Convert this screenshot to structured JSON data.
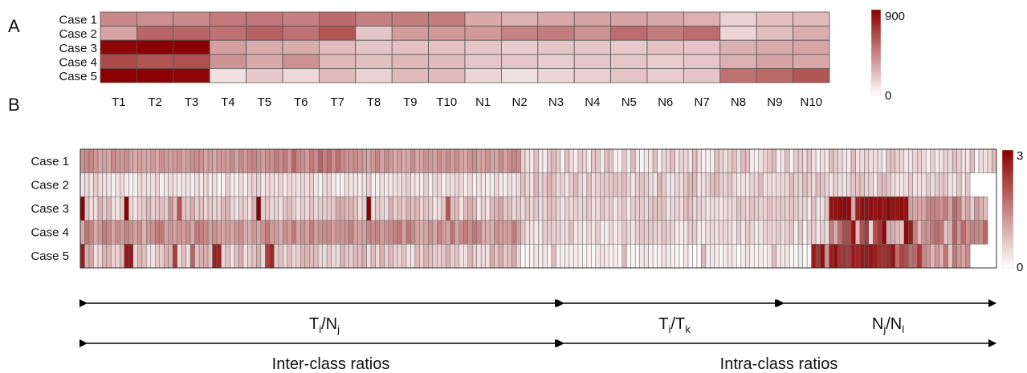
{
  "panel_labels": {
    "a": "A",
    "b": "B"
  },
  "colors": {
    "low": "#ffffff",
    "high": "#8b0000",
    "grid": "#555555",
    "arrow": "#000000"
  },
  "chart_data": [
    {
      "type": "heatmap",
      "rows": [
        "Case 1",
        "Case 2",
        "Case 3",
        "Case 4",
        "Case 5"
      ],
      "columns": [
        "T1",
        "T2",
        "T3",
        "T4",
        "T5",
        "T6",
        "T7",
        "T8",
        "T9",
        "T10",
        "N1",
        "N2",
        "N3",
        "N4",
        "N5",
        "N6",
        "N7",
        "N8",
        "N9",
        "N10"
      ],
      "values": [
        [
          420,
          400,
          410,
          470,
          480,
          450,
          520,
          450,
          460,
          460,
          300,
          280,
          300,
          320,
          320,
          300,
          280,
          160,
          220,
          240
        ],
        [
          320,
          540,
          540,
          500,
          560,
          500,
          600,
          200,
          350,
          360,
          360,
          440,
          460,
          390,
          520,
          460,
          520,
          150,
          230,
          290
        ],
        [
          880,
          900,
          900,
          340,
          300,
          290,
          240,
          200,
          220,
          220,
          200,
          180,
          200,
          200,
          190,
          220,
          210,
          280,
          300,
          320
        ],
        [
          640,
          600,
          620,
          380,
          300,
          390,
          250,
          220,
          250,
          240,
          200,
          200,
          180,
          200,
          200,
          180,
          200,
          280,
          320,
          310
        ],
        [
          900,
          900,
          880,
          110,
          190,
          140,
          240,
          160,
          240,
          240,
          150,
          110,
          150,
          170,
          210,
          180,
          210,
          500,
          530,
          600
        ]
      ],
      "scale": {
        "min": 0,
        "max": 900,
        "min_label": "0",
        "max_label": "900"
      }
    },
    {
      "type": "heatmap",
      "rows": [
        "Case 1",
        "Case 2",
        "Case 3",
        "Case 4",
        "Case 5"
      ],
      "scale": {
        "min": 0,
        "max": 3,
        "min_label": "0",
        "max_label": "3"
      },
      "segments": [
        {
          "label_base": "T",
          "label_sub": "i",
          "label_mid": "/N",
          "label_sub2": "j"
        },
        {
          "label_base": "T",
          "label_sub": "i",
          "label_mid": "/T",
          "label_sub2": "k"
        },
        {
          "label_base": "N",
          "label_sub": "j",
          "label_mid": "/N",
          "label_sub2": "l"
        }
      ],
      "groups": [
        "Inter-class ratios",
        "Intra-class ratios"
      ],
      "values": [
        [
          1.31,
          1.4,
          1.44,
          1.21,
          1.05,
          1.1,
          1.02,
          1.39,
          1.24,
          1.19,
          1.32,
          1.11,
          1.0,
          1.15,
          1.05,
          1.02,
          1.2,
          1.0,
          1.34,
          1.19,
          1.15,
          1.2,
          1.29,
          1.05,
          1.18,
          1.32,
          1.35,
          1.26,
          1.04,
          1.16,
          1.03,
          1.2,
          1.2,
          1.19,
          1.37,
          1.07,
          1.36,
          1.2,
          1.39,
          1.43,
          1.31,
          1.14,
          1.32,
          1.31,
          1.54,
          1.36,
          1.57,
          1.22,
          1.81,
          1.42,
          1.36,
          1.2,
          1.58,
          1.37,
          1.82,
          1.49,
          1.72,
          1.31,
          1.71,
          1.42,
          1.28,
          1.26,
          1.4,
          1.25,
          1.16,
          1.06,
          1.22,
          1.43,
          1.05,
          1.35,
          1.21,
          0.99,
          1.14,
          0.96,
          1.06,
          1.37,
          1.03,
          1.07,
          1.25,
          1.19,
          1.1,
          1.33,
          1.13,
          1.35,
          1.15,
          1.35,
          1.13,
          1.02,
          1.27,
          1.31,
          1.09,
          1.07,
          1.27,
          1.05,
          1.04,
          1.36,
          1.05,
          1.3,
          1.43,
          1.37,
          0.58,
          0.38,
          0.27,
          0.74,
          0.29,
          0.19,
          0.68,
          0.79,
          0.62,
          0.17,
          0.78,
          0.44,
          0.17,
          0.66,
          0.52,
          0.24,
          0.7,
          0.68,
          0.24,
          0.82,
          0.7,
          0.2,
          0.14,
          0.68,
          0.27,
          0.83,
          0.27,
          0.12,
          0.28,
          0.33,
          0.75,
          0.17,
          0.48,
          0.56,
          0.76,
          0.3,
          0.51,
          0.46,
          0.35,
          0.79,
          0.44,
          0.16,
          0.2,
          0.22,
          0.79,
          0.55,
          0.39,
          0.57,
          0.78,
          0.42,
          0.82,
          0.74,
          0.24,
          0.15,
          0.35,
          0.52,
          0.71,
          0.8,
          0.2,
          0.34,
          0.77,
          0.12,
          0.61,
          0.61,
          0.4,
          0.73,
          0.35,
          0.21,
          0.37,
          0.26,
          0.75,
          0.63,
          0.47,
          0.33,
          0.25,
          0.82,
          0.32,
          0.4,
          0.53,
          0.41,
          0.39,
          0.46,
          0.2,
          0.73,
          0.74,
          0.58,
          0.52,
          0.27,
          0.36,
          0.49,
          0.6,
          0.47,
          0.16,
          0.58,
          0.24,
          0.36,
          0.54,
          0.44,
          0.78,
          0.56,
          0.4,
          0.31,
          0.78,
          0.12,
          0.4,
          0.33,
          0.47,
          0.81
        ],
        [
          0.34,
          0.45,
          0.36,
          0.6,
          0.43,
          0.4,
          0.35,
          0.15,
          0.34,
          0.46,
          0.23,
          0.16,
          0.2,
          0.5,
          0.41,
          0.36,
          0.38,
          0.52,
          0.2,
          0.32,
          0.44,
          0.34,
          0.24,
          0.29,
          0.35,
          0.18,
          0.41,
          0.28,
          0.48,
          0.29,
          0.36,
          0.17,
          0.2,
          0.59,
          0.25,
          0.2,
          0.4,
          0.22,
          0.51,
          0.53,
          0.57,
          0.3,
          0.42,
          0.44,
          0.37,
          0.57,
          0.23,
          0.49,
          0.42,
          0.34,
          0.52,
          0.41,
          0.58,
          0.3,
          0.15,
          0.48,
          0.51,
          0.27,
          0.15,
          0.19,
          0.39,
          0.29,
          0.35,
          0.25,
          0.4,
          0.56,
          0.18,
          0.21,
          0.39,
          0.26,
          0.3,
          0.35,
          0.39,
          0.43,
          0.59,
          0.33,
          0.31,
          0.27,
          0.56,
          0.24,
          0.48,
          0.5,
          0.22,
          0.44,
          0.42,
          0.52,
          0.48,
          0.23,
          0.48,
          0.2,
          0.37,
          0.27,
          0.22,
          0.25,
          0.52,
          0.26,
          0.19,
          0.38,
          0.24,
          0.45,
          0.76,
          0.47,
          0.33,
          0.87,
          0.54,
          0.62,
          0.88,
          0.74,
          0.44,
          0.54,
          0.3,
          0.64,
          0.83,
          0.52,
          0.31,
          0.79,
          0.4,
          0.57,
          0.64,
          0.65,
          0.62,
          0.75,
          0.6,
          0.79,
          0.51,
          0.3,
          0.59,
          0.71,
          0.62,
          0.43,
          0.3,
          0.88,
          0.61,
          0.3,
          0.32,
          0.49,
          0.41,
          0.67,
          0.87,
          0.81,
          0.34,
          0.37,
          0.55,
          0.77,
          0.86,
          0.58,
          0.52,
          0.7,
          0.47,
          0.29,
          0.36,
          0.31,
          0.58,
          0.49,
          0.82,
          0.33,
          0.46,
          0.37,
          0.45,
          0.48,
          0.49,
          0.81,
          0.58,
          0.49,
          0.79,
          0.6,
          0.43,
          0.78,
          0.71,
          0.51,
          0.34,
          0.56,
          0.35,
          0.33,
          0.5,
          0.69,
          0.67,
          0.75,
          0.57,
          0.54,
          0.29,
          0.75,
          0.8,
          0.69,
          0.4,
          0.37,
          0.31,
          0.4,
          0.66,
          0.33,
          0.37,
          0.38,
          0.64,
          0.42,
          0.61,
          0.66,
          0.7,
          0.31,
          0.32,
          0.7,
          0.33,
          0.67
        ],
        [
          3.0,
          0.73,
          0.42,
          0.36,
          0.93,
          0.62,
          0.85,
          0.37,
          0.32,
          0.57,
          3.0,
          0.51,
          0.32,
          0.55,
          0.65,
          0.84,
          0.59,
          0.69,
          0.77,
          0.61,
          1.31,
          0.76,
          2.0,
          0.72,
          0.66,
          0.96,
          0.58,
          0.78,
          0.51,
          0.67,
          0.52,
          0.52,
          0.84,
          0.87,
          0.45,
          0.33,
          0.61,
          0.58,
          0.4,
          0.92,
          3.0,
          0.58,
          0.67,
          0.48,
          0.55,
          0.37,
          0.7,
          0.79,
          0.59,
          0.37,
          0.62,
          0.46,
          0.73,
          0.51,
          0.59,
          0.63,
          0.62,
          0.63,
          0.97,
          0.97,
          0.82,
          0.87,
          0.76,
          0.4,
          0.59,
          3.0,
          0.38,
          0.64,
          0.53,
          0.41,
          0.94,
          0.54,
          0.8,
          0.58,
          0.94,
          0.75,
          0.88,
          0.51,
          0.71,
          0.64,
          0.37,
          0.45,
          0.66,
          1.99,
          0.75,
          0.83,
          0.32,
          0.8,
          0.96,
          0.81,
          0.3,
          0.56,
          0.34,
          0.81,
          0.89,
          1.02,
          0.62,
          0.77,
          0.42,
          0.66,
          0.44,
          0.72,
          0.49,
          0.64,
          0.43,
          0.51,
          0.77,
          0.71,
          0.53,
          0.3,
          0.52,
          0.47,
          0.54,
          0.48,
          0.52,
          0.66,
          0.34,
          0.45,
          0.69,
          0.51,
          0.61,
          0.3,
          0.49,
          0.69,
          0.26,
          0.61,
          0.57,
          0.59,
          0.46,
          0.67,
          0.71,
          0.72,
          0.71,
          0.32,
          0.48,
          0.48,
          0.42,
          0.76,
          0.76,
          0.48,
          0.57,
          0.41,
          0.32,
          0.42,
          0.43,
          0.29,
          0.42,
          0.5,
          0.46,
          0.72,
          0.61,
          0.5,
          0.72,
          0.62,
          0.56,
          0.51,
          0.73,
          0.55,
          0.61,
          0.63,
          0.56,
          0.7,
          0.62,
          0.5,
          0.49,
          0.3,
          0.73,
          0.36,
          0.36,
          0.68,
          2.76,
          2.81,
          2.88,
          2.91,
          2.89,
          1.01,
          2.61,
          2.8,
          2.81,
          2.87,
          2.78,
          2.85,
          2.73,
          2.91,
          2.81,
          2.77,
          2.88,
          2.76,
          1.1,
          1.03,
          1.01,
          1.06,
          1.39,
          1.51,
          1.41,
          1.3,
          1.51,
          1.03,
          1.75,
          1.51,
          0.78,
          1.05,
          0.6,
          1.19,
          0.92,
          0.79
        ],
        [
          1.06,
          1.66,
          1.45,
          0.97,
          1.24,
          1.57,
          1.41,
          1.06,
          1.37,
          1.16,
          1.48,
          1.3,
          1.11,
          1.37,
          0.9,
          1.23,
          1.31,
          1.54,
          1.58,
          1.08,
          1.29,
          1.1,
          1.26,
          1.16,
          1.34,
          0.99,
          1.58,
          1.5,
          1.38,
          1.13,
          1.32,
          1.11,
          1.03,
          1.17,
          1.04,
          1.25,
          1.32,
          1.0,
          0.95,
          1.2,
          1.02,
          1.29,
          1.56,
          1.18,
          1.16,
          0.98,
          1.33,
          1.18,
          1.56,
          1.07,
          1.32,
          1.1,
          1.52,
          1.14,
          1.29,
          1.37,
          1.35,
          1.11,
          1.27,
          1.23,
          1.31,
          1.5,
          1.12,
          1.09,
          1.09,
          1.4,
          1.33,
          1.45,
          1.14,
          1.27,
          1.35,
          1.47,
          1.61,
          1.1,
          1.61,
          1.4,
          1.09,
          0.93,
          1.06,
          1.31,
          1.02,
          1.46,
          1.19,
          1.02,
          1.65,
          1.03,
          1.36,
          1.53,
          1.32,
          1.58,
          1.39,
          0.99,
          0.93,
          0.93,
          1.32,
          1.16,
          1.13,
          1.11,
          1.57,
          1.14,
          0.69,
          0.33,
          0.38,
          0.23,
          0.34,
          0.59,
          0.63,
          0.54,
          0.54,
          0.39,
          0.41,
          0.74,
          0.26,
          0.4,
          0.23,
          0.5,
          0.33,
          0.63,
          0.21,
          0.23,
          0.46,
          0.25,
          0.33,
          0.68,
          0.45,
          0.29,
          0.55,
          0.69,
          0.62,
          0.64,
          0.56,
          0.48,
          0.69,
          0.58,
          0.51,
          0.24,
          0.22,
          0.35,
          0.64,
          0.61,
          0.23,
          0.21,
          0.4,
          0.46,
          0.39,
          0.46,
          0.5,
          0.47,
          0.25,
          0.61,
          0.29,
          0.6,
          0.51,
          0.25,
          0.36,
          0.52,
          0.57,
          0.43,
          0.62,
          0.41,
          0.58,
          0.69,
          0.24,
          0.68,
          0.2,
          0.53,
          0.6,
          0.3,
          0.6,
          0.38,
          1.52,
          0.97,
          1.68,
          2.1,
          2.1,
          2.78,
          0.82,
          2.05,
          2.32,
          0.49,
          2.07,
          2.37,
          2.89,
          1.0,
          0.95,
          0.83,
          0.66,
          2.91,
          2.66,
          1.52,
          0.8,
          1.3,
          1.27,
          1.59,
          1.73,
          1.59,
          0.69,
          0.88,
          1.87,
          1.21,
          1.72,
          1.26,
          1.47,
          1.42,
          1.36,
          1.81
        ],
        [
          2.67,
          0.97,
          1.06,
          0.32,
          0.52,
          0.91,
          0.88,
          0.55,
          0.52,
          0.84,
          2.74,
          2.72,
          0.46,
          0.9,
          0.78,
          0.35,
          0.33,
          0.64,
          0.64,
          0.92,
          0.9,
          2.28,
          0.43,
          0.76,
          0.4,
          1.82,
          0.74,
          0.93,
          0.99,
          0.67,
          2.59,
          2.59,
          0.49,
          0.71,
          0.33,
          0.74,
          0.99,
          0.38,
          0.6,
          0.73,
          0.95,
          0.43,
          2.25,
          2.57,
          0.63,
          0.74,
          0.48,
          0.79,
          0.47,
          0.57,
          0.89,
          0.85,
          0.77,
          0.82,
          0.47,
          0.43,
          0.69,
          0.45,
          0.42,
          0.91,
          0.66,
          0.58,
          0.82,
          0.77,
          0.97,
          0.39,
          0.8,
          0.46,
          0.92,
          0.56,
          0.84,
          0.55,
          0.52,
          0.72,
          0.34,
          0.34,
          0.82,
          0.55,
          0.92,
          0.78,
          0.63,
          0.57,
          0.68,
          0.93,
          0.59,
          0.69,
          0.34,
          0.37,
          0.87,
          0.62,
          0.38,
          0.45,
          0.36,
          0.96,
          0.7,
          0.99,
          0.62,
          0.75,
          1.0,
          0.48,
          0.07,
          0.12,
          0.17,
          0.31,
          0.25,
          0.31,
          0.15,
          0.82,
          0.16,
          0.19,
          0.24,
          0.22,
          0.21,
          0.24,
          0.13,
          0.16,
          0.08,
          0.32,
          0.35,
          0.29,
          0.17,
          0.26,
          0.09,
          0.86,
          0.14,
          0.12,
          0.12,
          0.31,
          0.31,
          0.18,
          0.13,
          0.18,
          0.34,
          0.22,
          0.18,
          0.1,
          0.05,
          0.32,
          0.13,
          0.06,
          0.05,
          0.82,
          0.18,
          0.3,
          0.23,
          0.09,
          0.25,
          0.31,
          0.26,
          0.06,
          0.25,
          0.35,
          0.2,
          0.13,
          0.23,
          0.17,
          0.29,
          0.76,
          0.3,
          0.27,
          0.32,
          0.13,
          0.11,
          0.3,
          0.09,
          0.12,
          2.72,
          2.37,
          2.82,
          1.24,
          2.64,
          2.82,
          2.37,
          2.37,
          2.28,
          2.67,
          2.55,
          2.7,
          2.69,
          2.78,
          2.66,
          2.45,
          2.42,
          2.53,
          2.76,
          1.72,
          2.21,
          2.08,
          1.71,
          1.75,
          2.35,
          1.4,
          1.26,
          0.83,
          1.24,
          0.89,
          1.59,
          0.6,
          1.59,
          1.22,
          1.03,
          1.37
        ]
      ]
    }
  ]
}
